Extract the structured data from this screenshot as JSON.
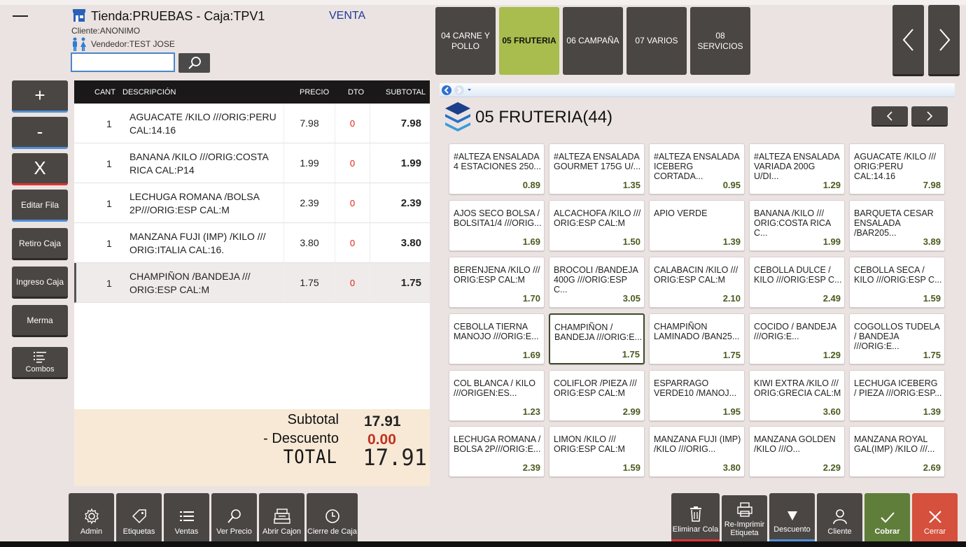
{
  "header": {
    "title": "Tienda:PRUEBAS - Caja:TPV1",
    "mode": "VENTA",
    "cliente": "Cliente:ANONIMO",
    "vendedor": "Vendedor:TEST JOSE",
    "search_value": ""
  },
  "categories": [
    {
      "label": "04 CARNE Y POLLO",
      "active": false
    },
    {
      "label": "05 FRUTERIA",
      "active": true
    },
    {
      "label": "06 CAMPAÑA",
      "active": false
    },
    {
      "label": "07 VARIOS",
      "active": false
    },
    {
      "label": "08 SERVICIOS",
      "active": false
    }
  ],
  "left_buttons": {
    "plus": "+",
    "minus": "-",
    "delete": "X",
    "edit_row": "Editar Fila",
    "withdraw": "Retiro Caja",
    "deposit": "Ingreso Caja",
    "waste": "Merma",
    "combos": "Combos"
  },
  "ticket": {
    "headers": {
      "qty": "CANT",
      "desc": "DESCRIPCIÓN",
      "price": "PRECIO",
      "dto": "DTO",
      "subtotal": "SUBTOTAL"
    },
    "rows": [
      {
        "qty": "1",
        "desc": "AGUACATE /KILO ///ORIG:PERU CAL:14.16",
        "price": "7.98",
        "dto": "0",
        "subtotal": "7.98"
      },
      {
        "qty": "1",
        "desc": "BANANA /KILO ///ORIG:COSTA RICA CAL:P14",
        "price": "1.99",
        "dto": "0",
        "subtotal": "1.99"
      },
      {
        "qty": "1",
        "desc": "LECHUGA ROMANA /BOLSA 2P///ORIG:ESP CAL:M",
        "price": "2.39",
        "dto": "0",
        "subtotal": "2.39"
      },
      {
        "qty": "1",
        "desc": "MANZANA FUJI (IMP) /KILO /// ORIG:ITALIA CAL:16.",
        "price": "3.80",
        "dto": "0",
        "subtotal": "3.80"
      },
      {
        "qty": "1",
        "desc": "CHAMPIÑON /BANDEJA /// ORIG:ESP CAL:M",
        "price": "1.75",
        "dto": "0",
        "subtotal": "1.75"
      }
    ]
  },
  "totals": {
    "subtotal_label": "Subtotal",
    "subtotal": "17.91",
    "discount_label": "- Descuento",
    "discount": "0.00",
    "total_label": "TOTAL",
    "total": "17.91"
  },
  "products_panel": {
    "title": "05 FRUTERIA(44)",
    "products": [
      {
        "name": "#ALTEZA ENSALADA 4 ESTACIONES 250...",
        "price": "0.89"
      },
      {
        "name": "#ALTEZA ENSALADA GOURMET 175G U/...",
        "price": "1.35"
      },
      {
        "name": "#ALTEZA ENSALADA ICEBERG CORTADA...",
        "price": "0.95"
      },
      {
        "name": "#ALTEZA ENSALADA VARIADA 200G U/DI...",
        "price": "1.29"
      },
      {
        "name": "AGUACATE /KILO /// ORIG:PERU CAL:14.16",
        "price": "7.98"
      },
      {
        "name": "AJOS SECO BOLSA / BOLSITA1/4 ///ORIG...",
        "price": "1.69"
      },
      {
        "name": "ALCACHOFA /KILO /// ORIG:ESP CAL:M",
        "price": "1.50"
      },
      {
        "name": "APIO VERDE",
        "price": "1.39"
      },
      {
        "name": "BANANA /KILO /// ORIG:COSTA RICA C...",
        "price": "1.99"
      },
      {
        "name": "BARQUETA CESAR ENSALADA /BAR205...",
        "price": "3.89"
      },
      {
        "name": "BERENJENA /KILO /// ORIG:ESP CAL:M",
        "price": "1.70"
      },
      {
        "name": "BROCOLI /BANDEJA 400G ///ORIG:ESP C...",
        "price": "3.05"
      },
      {
        "name": "CALABACIN /KILO /// ORIG:ESP CAL:M",
        "price": "2.10"
      },
      {
        "name": "CEBOLLA DULCE / KILO ///ORIG:ESP C...",
        "price": "2.49"
      },
      {
        "name": "CEBOLLA SECA / KILO ///ORIG:ESP C...",
        "price": "1.59"
      },
      {
        "name": "CEBOLLA TIERNA MANOJO ///ORIG:E...",
        "price": "1.69"
      },
      {
        "name": "CHAMPIÑON / BANDEJA ///ORIG:E...",
        "price": "1.75"
      },
      {
        "name": "CHAMPIÑON LAMINADO /BAN25...",
        "price": "1.75"
      },
      {
        "name": "COCIDO / BANDEJA ///ORIG:E...",
        "price": "1.29"
      },
      {
        "name": "COGOLLOS TUDELA / BANDEJA ///ORIG:E...",
        "price": "1.75"
      },
      {
        "name": "COL BLANCA / KILO ///ORIGEN:ES...",
        "price": "1.23"
      },
      {
        "name": "COLIFLOR /PIEZA /// ORIG:ESP CAL:M",
        "price": "2.99"
      },
      {
        "name": "ESPARRAGO VERDE10 /MANOJ...",
        "price": "1.95"
      },
      {
        "name": "KIWI EXTRA /KILO /// ORIG:GRECIA CAL:M",
        "price": "3.60"
      },
      {
        "name": "LECHUGA ICEBERG / PIEZA ///ORIG:ESP...",
        "price": "1.39"
      },
      {
        "name": "LECHUGA ROMANA / BOLSA 2P///ORIG:E...",
        "price": "2.39"
      },
      {
        "name": "LIMON /KILO /// ORIG:ESP CAL:M",
        "price": "1.59"
      },
      {
        "name": "MANZANA FUJI (IMP) /KILO ///ORIG...",
        "price": "3.80"
      },
      {
        "name": "MANZANA GOLDEN /KILO ///O...",
        "price": "2.29"
      },
      {
        "name": "MANZANA ROYAL GAL(IMP) /KILO ///...",
        "price": "2.69"
      }
    ]
  },
  "bottom_left": [
    {
      "label": "Admin",
      "icon": "gear-icon"
    },
    {
      "label": "Etiquetas",
      "icon": "tag-icon"
    },
    {
      "label": "Ventas",
      "icon": "list-icon"
    },
    {
      "label": "Ver Precio",
      "icon": "search-icon"
    },
    {
      "label": "Abrir Cajon",
      "icon": "cash-drawer-icon"
    },
    {
      "label": "Cierre de Caja",
      "icon": "clock-icon"
    }
  ],
  "bottom_right": [
    {
      "label": "Eliminar Cola",
      "icon": "trash-icon"
    },
    {
      "label": "Re-Imprimir Etiqueta",
      "icon": "printer-icon"
    },
    {
      "label": "Descuento",
      "icon": "triangle-down-icon"
    },
    {
      "label": "Cliente",
      "icon": "user-icon"
    },
    {
      "label": "Cobrar",
      "icon": "check-icon"
    },
    {
      "label": "Cerrar",
      "icon": "close-icon"
    }
  ],
  "colors": {
    "accent_green": "#a9bd4e",
    "dark_button": "#4a4644",
    "venta_blue": "#1f3a9a",
    "discount_red": "#d21",
    "price_green": "#4a5a1e"
  }
}
